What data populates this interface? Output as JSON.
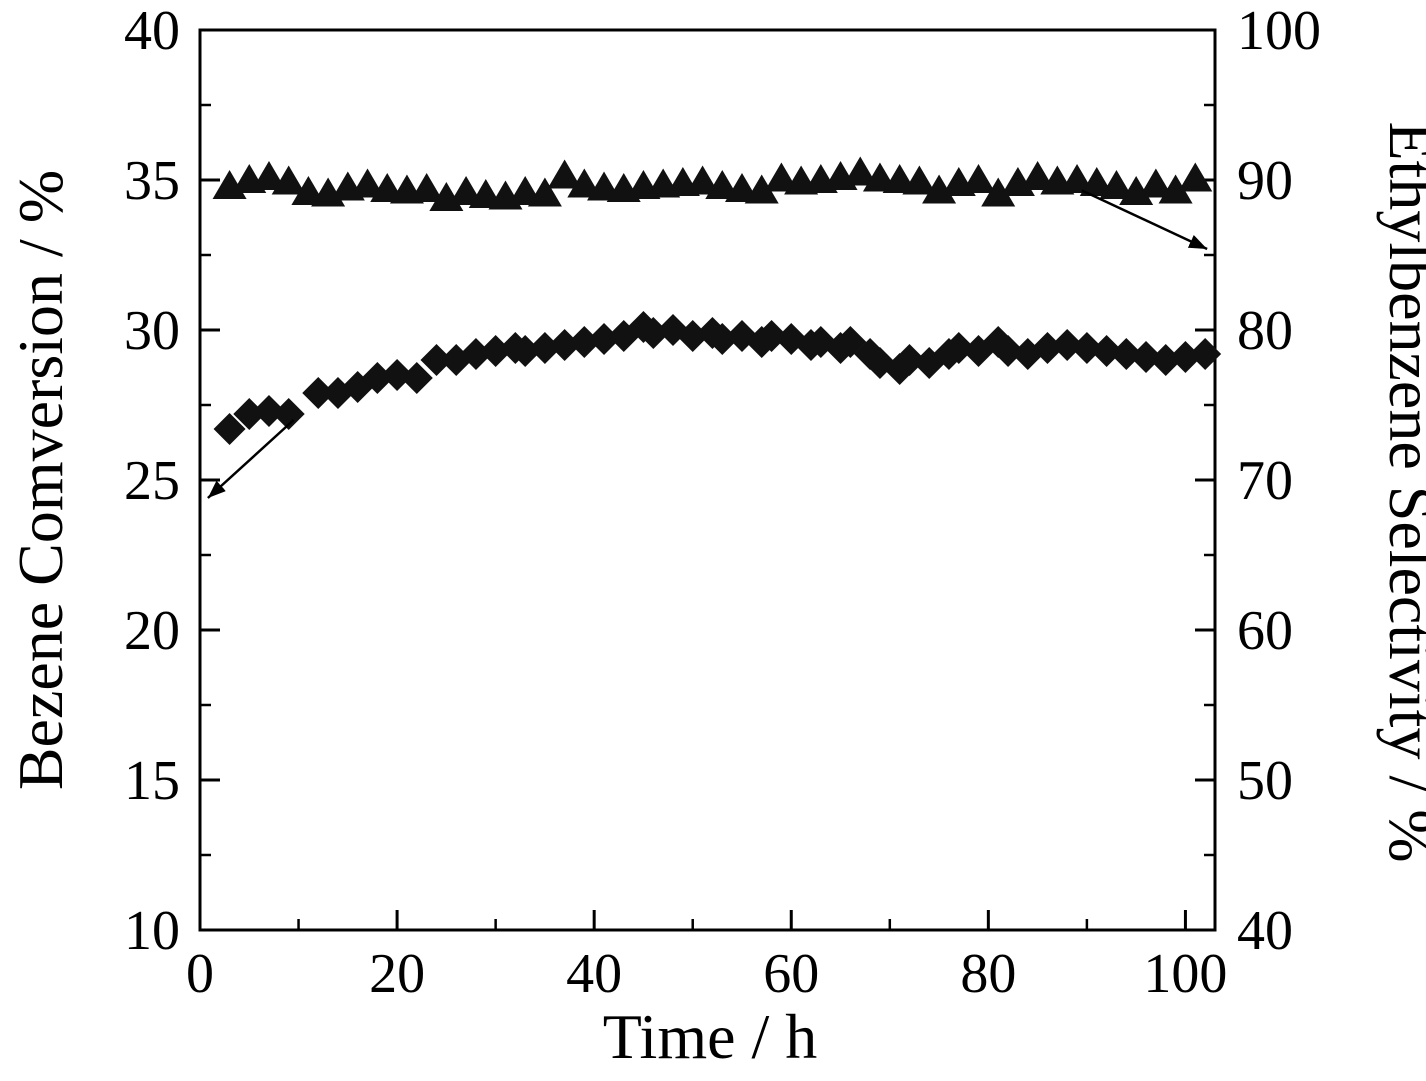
{
  "chart_data": {
    "type": "scatter",
    "title": "",
    "xlabel": "Time / h",
    "ylabel_left": "Bezene Comversion / %",
    "ylabel_right": "Ethylbenzene Selectivity / %",
    "xlim": [
      0,
      103
    ],
    "ylim_left": [
      10,
      40
    ],
    "ylim_right": [
      40,
      100
    ],
    "xticks": [
      0,
      20,
      40,
      60,
      80,
      100
    ],
    "yticks_left": [
      10,
      15,
      20,
      25,
      30,
      35,
      40
    ],
    "yticks_right": [
      40,
      50,
      60,
      70,
      80,
      90,
      100
    ],
    "grid": false,
    "legend": "none",
    "axis_color": "#000000",
    "series": [
      {
        "name": "benzene-conversion",
        "marker": "diamond",
        "axis": "left",
        "color": "#111111",
        "x": [
          3,
          5,
          7,
          9,
          12,
          14,
          16,
          18,
          20,
          22,
          24,
          26,
          28,
          30,
          32,
          33,
          35,
          37,
          39,
          41,
          43,
          45,
          46,
          48,
          50,
          52,
          53,
          55,
          57,
          58,
          60,
          62,
          63,
          65,
          66,
          68,
          69,
          71,
          72,
          74,
          76,
          77,
          79,
          81,
          82,
          84,
          86,
          88,
          90,
          92,
          94,
          96,
          98,
          100,
          102
        ],
        "y": [
          26.7,
          27.2,
          27.3,
          27.2,
          27.9,
          27.9,
          28.1,
          28.4,
          28.5,
          28.4,
          29.0,
          29.0,
          29.2,
          29.3,
          29.4,
          29.3,
          29.4,
          29.5,
          29.6,
          29.7,
          29.8,
          30.1,
          29.9,
          30.0,
          29.8,
          29.9,
          29.7,
          29.8,
          29.6,
          29.8,
          29.7,
          29.5,
          29.6,
          29.4,
          29.6,
          29.2,
          28.9,
          28.7,
          29.0,
          28.9,
          29.2,
          29.4,
          29.3,
          29.6,
          29.3,
          29.2,
          29.4,
          29.5,
          29.4,
          29.3,
          29.2,
          29.1,
          29.0,
          29.1,
          29.2
        ]
      },
      {
        "name": "ethylbenzene-selectivity",
        "marker": "triangle",
        "axis": "right",
        "color": "#111111",
        "x": [
          3,
          5,
          7,
          9,
          11,
          13,
          15,
          17,
          19,
          21,
          23,
          25,
          27,
          29,
          31,
          33,
          35,
          37,
          39,
          41,
          43,
          45,
          47,
          49,
          51,
          53,
          55,
          57,
          59,
          61,
          63,
          65,
          67,
          69,
          71,
          73,
          75,
          77,
          79,
          81,
          83,
          85,
          87,
          89,
          91,
          93,
          95,
          97,
          99,
          101
        ],
        "y": [
          89.6,
          90.0,
          90.2,
          89.9,
          89.2,
          89.1,
          89.5,
          89.7,
          89.4,
          89.3,
          89.4,
          88.8,
          89.2,
          89.0,
          88.9,
          89.2,
          89.1,
          90.3,
          89.7,
          89.5,
          89.4,
          89.6,
          89.7,
          89.8,
          89.9,
          89.6,
          89.4,
          89.3,
          90.1,
          89.9,
          90.0,
          90.2,
          90.5,
          90.1,
          90.0,
          89.9,
          89.3,
          89.8,
          90.0,
          89.1,
          89.8,
          90.2,
          89.9,
          90.0,
          89.8,
          89.6,
          89.2,
          89.7,
          89.3,
          90.1
        ]
      }
    ],
    "annotations": [
      {
        "name": "conversion-axis-arrow",
        "axis": "left",
        "from": {
          "x": 9.5,
          "y": 27.0
        },
        "to": {
          "x": 0.8,
          "y": 24.4
        }
      },
      {
        "name": "selectivity-axis-arrow",
        "axis": "right",
        "from": {
          "x": 89.5,
          "y": 89.3
        },
        "to": {
          "x": 102.2,
          "y": 85.4
        }
      }
    ]
  }
}
